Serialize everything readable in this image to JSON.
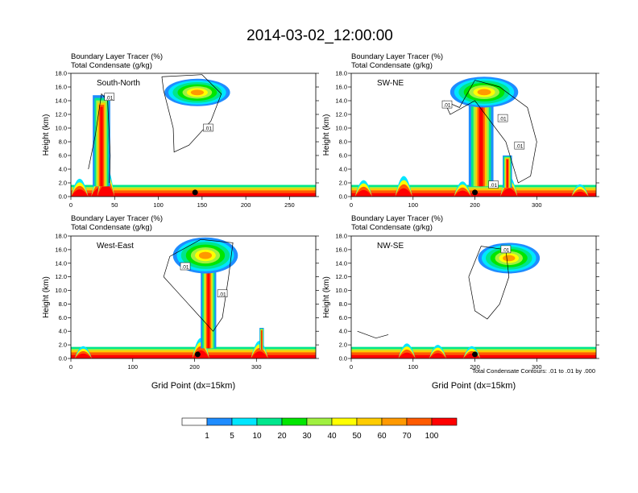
{
  "title": "2014-03-02_12:00:00",
  "header_line1": "Boundary Layer Tracer   (%)",
  "header_line2": "Total Condensate   (g/kg)",
  "footnote": "Total Condensate Contours: .01 to .01 by .000",
  "colors": {
    "bins": [
      "#ffffff",
      "#1e8cff",
      "#00e6ff",
      "#00e68c",
      "#00e600",
      "#a0f040",
      "#ffff00",
      "#ffcc00",
      "#ff9900",
      "#ff5a00",
      "#ff0000"
    ]
  },
  "chart_data": [
    {
      "type": "heatmap",
      "region": "South-North",
      "ylabel": "Height (km)",
      "xlabel": "",
      "ylim": [
        0,
        18
      ],
      "yticks": [
        "0.0",
        "2.0",
        "4.0",
        "6.0",
        "8.0",
        "10.0",
        "12.0",
        "14.0",
        "16.0",
        "18.0"
      ],
      "xlim": [
        0,
        280
      ],
      "xticks": [
        "0",
        "50",
        "100",
        "150",
        "200",
        "250"
      ],
      "contour_labels": [
        ".01",
        ".01"
      ],
      "marker_x": 142
    },
    {
      "type": "heatmap",
      "region": "SW-NE",
      "ylabel": "Height (km)",
      "xlabel": "",
      "ylim": [
        0,
        18
      ],
      "yticks": [
        "0.0",
        "2.0",
        "4.0",
        "6.0",
        "8.0",
        "10.0",
        "12.0",
        "14.0",
        "16.0",
        "18.0"
      ],
      "xlim": [
        0,
        396
      ],
      "xticks": [
        "0",
        "100",
        "200",
        "300"
      ],
      "contour_labels": [
        ".01",
        ".01",
        ".01",
        ".01"
      ],
      "marker_x": 200
    },
    {
      "type": "heatmap",
      "region": "West-East",
      "ylabel": "Height (km)",
      "xlabel": "Grid Point (dx=15km)",
      "ylim": [
        0,
        18
      ],
      "yticks": [
        "0.0",
        "2.0",
        "4.0",
        "6.0",
        "8.0",
        "10.0",
        "12.0",
        "14.0",
        "16.0",
        "18.0"
      ],
      "xlim": [
        0,
        396
      ],
      "xticks": [
        "0",
        "100",
        "200",
        "300"
      ],
      "contour_labels": [
        ".01",
        ".01"
      ],
      "marker_x": 205
    },
    {
      "type": "heatmap",
      "region": "NW-SE",
      "ylabel": "Height (km)",
      "xlabel": "Grid Point (dx=15km)",
      "ylim": [
        0,
        18
      ],
      "yticks": [
        "0.0",
        "2.0",
        "4.0",
        "6.0",
        "8.0",
        "10.0",
        "12.0",
        "14.0",
        "16.0",
        "18.0"
      ],
      "xlim": [
        0,
        396
      ],
      "xticks": [
        "0",
        "100",
        "200",
        "300"
      ],
      "contour_labels": [
        ".01"
      ],
      "marker_x": 200
    }
  ],
  "colorbar": {
    "labels": [
      "1",
      "5",
      "10",
      "20",
      "30",
      "40",
      "50",
      "60",
      "70",
      "100"
    ]
  }
}
